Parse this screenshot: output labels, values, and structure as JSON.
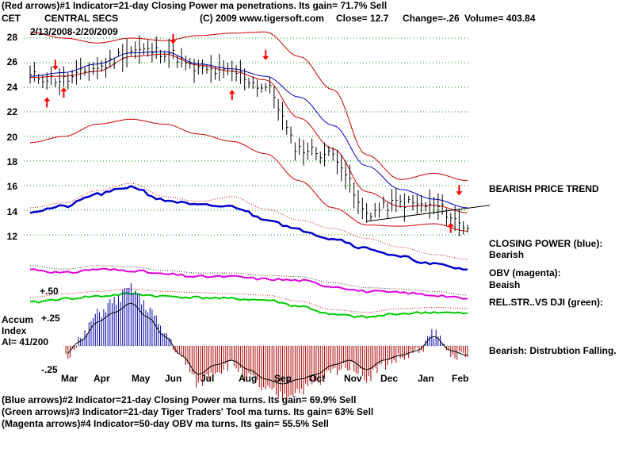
{
  "header": {
    "line1": "(Red arrows)#1 Indicator=21-day Closing Power ma penetrations. Its gain= 71.7% Sell",
    "ticker": "CET",
    "company": "CENTRAL SECS",
    "copyright": "(C) 2009 www.tigersoft.com",
    "close": "Close=  12.7",
    "change": "Change=-.26",
    "volume": "Volume= 403.84",
    "date_range": "2/13/2008-2/20/2009"
  },
  "side_labels": {
    "trend": "BEARISH PRICE TREND",
    "cp_title": "CLOSING POWER (blue):",
    "cp_value": "Bearish",
    "obv_title": "OBV (magenta):",
    "obv_value": "Beaish",
    "rs_title": "REL.STR..VS DJI (green):",
    "accum_comment": "Bearish: Distrubtion Falling."
  },
  "accum_labels": {
    "title1": "Accum",
    "title2": "Index",
    "ai": "AI= 41/200",
    "p50": "+.50",
    "p25": "+.25",
    "m25": "-.25"
  },
  "footer": {
    "line1": "(Blue arrows)#2 Indicator=21-day Closing Power ma turns. Its gain= 69.9% Sell",
    "line2": "(Green arrows)#3 Indicator=21-day Tiger Traders' Tool ma turns. Its gain= 63% Sell",
    "line3": "(Magenta arrows)#4 Indicator=50-day OBV ma turns. Its gain= 55.5% Sell"
  },
  "colors": {
    "price": "#000000",
    "ma": "#cc0000",
    "bands": "#cc0000",
    "closing_power": "#0000cc",
    "obv": "#dd00dd",
    "rel_strength": "#00cc00",
    "accum_positive": "#0000aa",
    "accum_negative": "#aa0000",
    "grid": "#009900",
    "sell_arrow": "#ff0000",
    "buy_arrow": "#ff0000"
  },
  "chart_data": {
    "type": "line",
    "x_axis_labels": [
      "Mar",
      "Apr",
      "May",
      "Jun",
      "Jul",
      "Aug",
      "Sep",
      "Oct",
      "Nov",
      "Dec",
      "Jan",
      "Feb"
    ],
    "y_axis_ticks": [
      28,
      26,
      24,
      22,
      20,
      18,
      16,
      14,
      12
    ],
    "ylim": [
      11,
      29
    ],
    "grid": true,
    "x": [
      0,
      4,
      8,
      12,
      16,
      20,
      24,
      28,
      32,
      36,
      40,
      44,
      48,
      52
    ],
    "series": [
      {
        "values": [
          24.9,
          24.6,
          25.6,
          27.0,
          26.9,
          25.4,
          25.2,
          24.0,
          19.0,
          18.5,
          13.8,
          14.6,
          14.3,
          12.7
        ]
      },
      {
        "values": [
          24.8,
          24.9,
          25.3,
          26.5,
          26.7,
          25.8,
          25.3,
          24.6,
          21.5,
          19.0,
          15.5,
          14.3,
          14.4,
          13.8
        ]
      },
      {
        "values": [
          19.5,
          20.0,
          21.0,
          21.4,
          21.0,
          20.2,
          19.6,
          18.6,
          16.4,
          14.2,
          12.8,
          12.7,
          12.9,
          12.3
        ]
      },
      {
        "values": [
          28.5,
          28.0,
          27.6,
          28.0,
          27.8,
          28.2,
          28.4,
          28.5,
          26.5,
          23.8,
          18.5,
          16.5,
          17.0,
          16.4
        ]
      },
      {
        "values": [
          24.9,
          25.2,
          25.9,
          26.8,
          26.9,
          25.9,
          25.5,
          24.9,
          23.2,
          20.9,
          17.6,
          15.7,
          14.9,
          14.2
        ]
      }
    ],
    "closing_power": [
      13.9,
      14.3,
      15.3,
      15.9,
      14.8,
      14.4,
      14.3,
      13.3,
      12.4,
      11.7,
      10.9,
      10.2,
      9.6,
      9.2
    ],
    "obv": [
      9.2,
      8.9,
      9.2,
      9.1,
      8.8,
      8.6,
      8.6,
      8.4,
      8.3,
      7.8,
      7.4,
      7.3,
      7.1,
      6.8
    ],
    "rel_strength": [
      6.5,
      6.8,
      7.0,
      7.2,
      7.0,
      6.9,
      6.8,
      6.7,
      6.2,
      5.5,
      5.3,
      5.6,
      5.7,
      5.6
    ],
    "accum_index": {
      "x": [
        0,
        2,
        4,
        6,
        8,
        10,
        12,
        14,
        16,
        18,
        20,
        22,
        24,
        26,
        28,
        30,
        32,
        34,
        36,
        38,
        40,
        42,
        44,
        46,
        48,
        50,
        52
      ],
      "values": [
        -0.1,
        -0.15,
        -0.1,
        0.05,
        0.25,
        0.35,
        0.45,
        0.3,
        0.1,
        -0.1,
        -0.3,
        -0.2,
        -0.15,
        -0.25,
        -0.35,
        -0.4,
        -0.35,
        -0.3,
        -0.2,
        -0.15,
        -0.25,
        -0.15,
        -0.1,
        -0.05,
        0.1,
        -0.05,
        -0.1
      ]
    },
    "sell_arrows": [
      [
        3,
        25.6
      ],
      [
        17,
        27.7
      ],
      [
        28,
        26.4
      ],
      [
        51,
        15.4
      ]
    ],
    "buy_arrows": [
      [
        2,
        23.0
      ],
      [
        4,
        23.8
      ],
      [
        24,
        23.6
      ],
      [
        50,
        12.8
      ]
    ]
  }
}
